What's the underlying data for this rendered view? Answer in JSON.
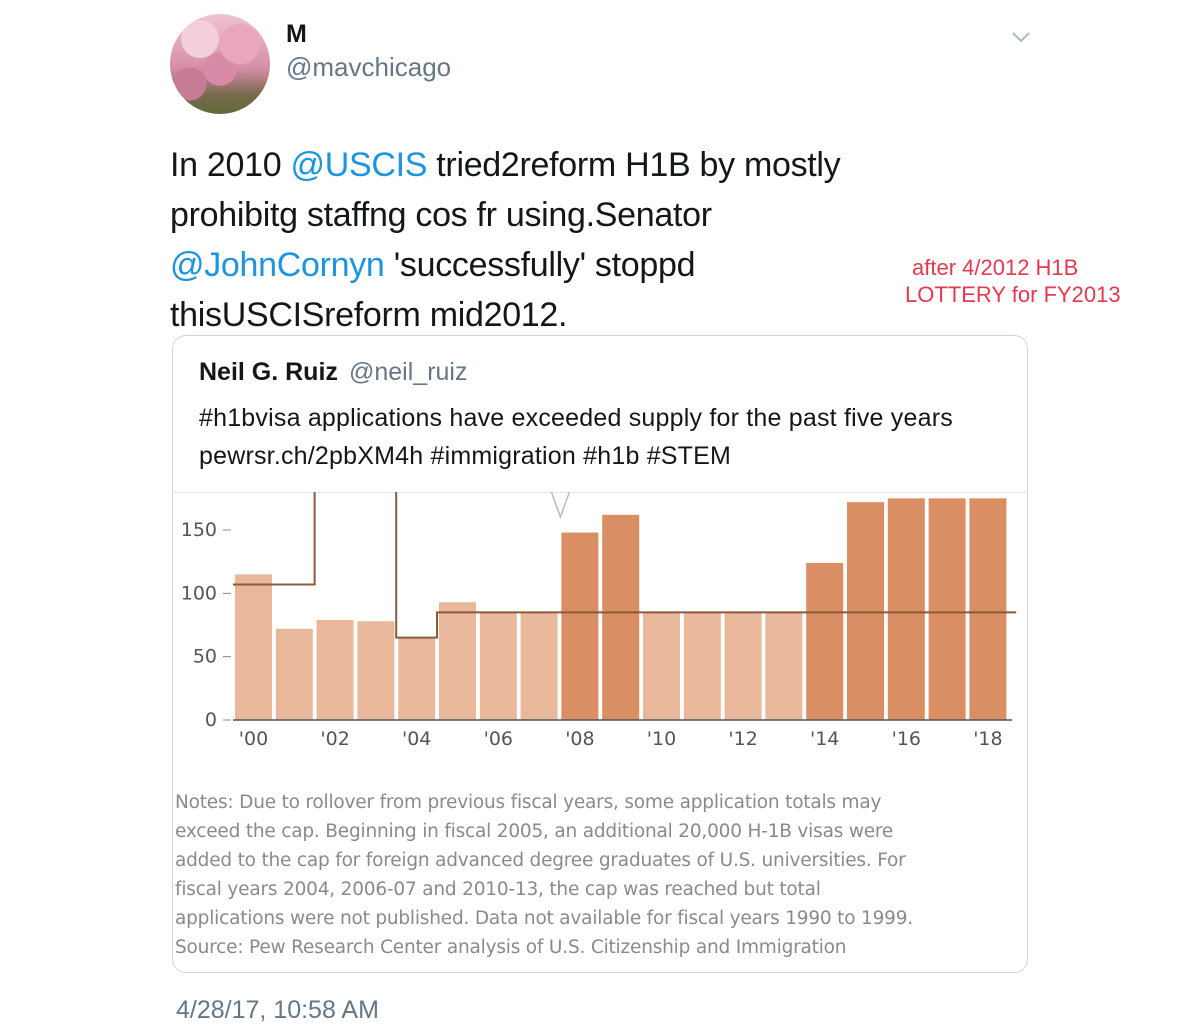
{
  "tweet": {
    "display_name": "M",
    "handle": "@mavchicago",
    "text": {
      "p1": "In 2010 ",
      "m1": "@USCIS",
      "p2": " tried2reform H1B by mostly prohibitg staffng cos fr using.Senator ",
      "m2": "@JohnCornyn",
      "p3": " 'successfully' stoppd thisUSCISreform mid2012."
    },
    "timestamp": "4/28/17, 10:58 AM"
  },
  "annotation": {
    "line1": "after 4/2012 H1B",
    "line2": "LOTTERY for FY2013",
    "color": "#e8384f"
  },
  "quoted_tweet": {
    "name": "Neil G. Ruiz",
    "handle": "@neil_ruiz",
    "text": "#h1bvisa applications have exceeded supply for the past five years pewrsr.ch/2pbXM4h #immigration #h1b #STEM"
  },
  "chart_data": {
    "type": "bar",
    "x_tick_labels": [
      "'00",
      "'02",
      "'04",
      "'06",
      "'08",
      "'10",
      "'12",
      "'14",
      "'16",
      "'18"
    ],
    "y_tick_labels": [
      "0",
      "50",
      "100",
      "150"
    ],
    "ylim": [
      0,
      175
    ],
    "categories": [
      "2000",
      "2001",
      "2002",
      "2003",
      "2004",
      "2005",
      "2006",
      "2007",
      "2008",
      "2009",
      "2010",
      "2011",
      "2012",
      "2013",
      "2014",
      "2015",
      "2016",
      "2017",
      "2018"
    ],
    "series": [
      {
        "values": [
          115,
          72,
          79,
          78,
          65,
          93,
          85,
          85,
          148,
          162,
          85,
          85,
          85,
          85,
          124,
          172,
          175,
          175,
          175
        ],
        "exceeded_cap": [
          false,
          false,
          false,
          false,
          false,
          false,
          false,
          false,
          true,
          true,
          false,
          false,
          false,
          false,
          true,
          true,
          true,
          true,
          true
        ]
      }
    ],
    "cap_line": [
      107,
      107,
      195,
      195,
      65,
      85,
      85,
      85,
      85,
      85,
      85,
      85,
      85,
      85,
      85,
      85,
      85,
      85,
      85
    ],
    "colors": {
      "bar_light": "#e9b89b",
      "bar_dark": "#d98f63",
      "cap_line": "#8a5a3c"
    },
    "notes": [
      "Notes: Due to rollover from previous fiscal years, some application totals may",
      "exceed the cap. Beginning in fiscal 2005, an additional 20,000 H-1B visas were",
      "added to the cap for foreign advanced degree graduates of U.S. universities. For",
      "fiscal years 2004, 2006-07 and 2010-13, the cap was reached but total",
      "applications were not published. Data not available for fiscal years 1990 to 1999.",
      "Source: Pew Research Center analysis of U.S. Citizenship and Immigration"
    ]
  }
}
